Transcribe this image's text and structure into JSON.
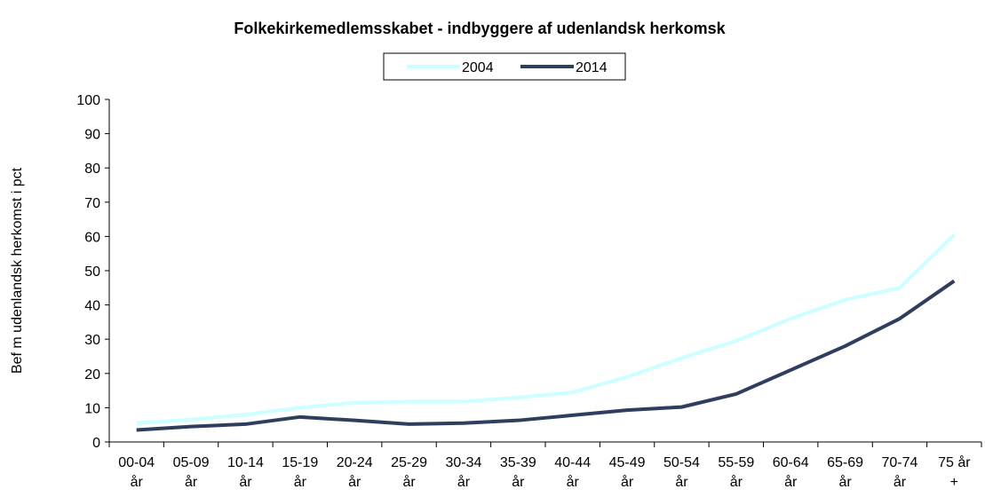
{
  "chart_data": {
    "type": "line",
    "title": "Folkekirkemedlemsskabet - indbyggere af udenlandsk herkomsk",
    "y_label": "Bef m udenlandsk herkomst i pct",
    "categories": [
      "00-04 år",
      "05-09 år",
      "10-14 år",
      "15-19 år",
      "20-24 år",
      "25-29 år",
      "30-34 år",
      "35-39 år",
      "40-44 år",
      "45-49 år",
      "50-54 år",
      "55-59 år",
      "60-64 år",
      "65-69 år",
      "70-74 år",
      "75 år +"
    ],
    "series": [
      {
        "name": "2004",
        "color": "#ccffff",
        "values": [
          5.5,
          6.5,
          8,
          10,
          11.5,
          11.8,
          11.8,
          13,
          14.5,
          19,
          24.5,
          29.5,
          36,
          41.5,
          45,
          60.5
        ]
      },
      {
        "name": "2014",
        "color": "#2f3d5e",
        "values": [
          3.5,
          4.5,
          5.2,
          7.3,
          6.3,
          5.2,
          5.5,
          6.3,
          7.8,
          9.3,
          10.2,
          14,
          21,
          28,
          36,
          47
        ]
      }
    ],
    "ylim": [
      0,
      100
    ],
    "yticks": [
      0,
      10,
      20,
      30,
      40,
      50,
      60,
      70,
      80,
      90,
      100
    ],
    "grid": false,
    "legend": "top"
  }
}
